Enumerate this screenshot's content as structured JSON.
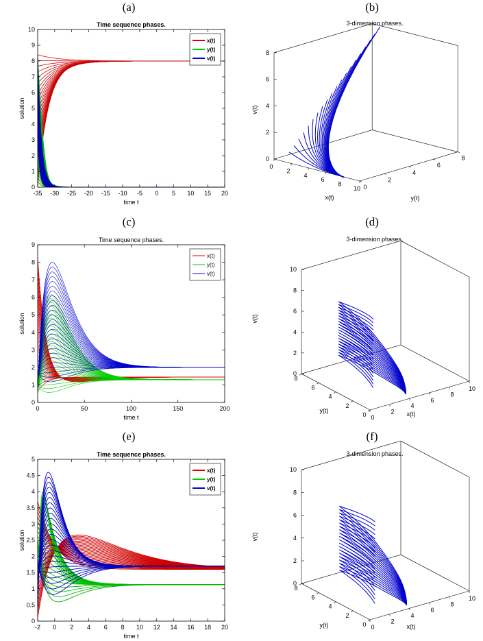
{
  "figure": {
    "labels": [
      "(a)",
      "(b)",
      "(c)",
      "(d)",
      "(e)",
      "(f)"
    ]
  },
  "chart_data": [
    {
      "id": "a",
      "type": "line",
      "title": "Time sequence phases.",
      "xlabel": "time t",
      "ylabel": "solution",
      "xlim": [
        -35,
        20
      ],
      "ylim": [
        0,
        10
      ],
      "xticks": [
        "-35",
        "-30",
        "-25",
        "-20",
        "-15",
        "-10",
        "-5",
        "0",
        "5",
        "10",
        "15",
        "20"
      ],
      "yticks": [
        "0",
        "1",
        "2",
        "3",
        "4",
        "5",
        "6",
        "7",
        "8",
        "9",
        "10"
      ],
      "legend": {
        "position": "top-right",
        "bold": true,
        "entries": [
          "x(t)",
          "y(t)",
          "v(t)"
        ]
      },
      "series": [
        {
          "name": "x(t)",
          "color": "#e00000",
          "description": "rises from ~0-8.4 near t=-35 and converges to 8"
        },
        {
          "name": "y(t)",
          "color": "#00cc00",
          "description": "drops from ~8 at t=-35 to ~0 by t=-25"
        },
        {
          "name": "v(t)",
          "color": "#0000cc",
          "description": "spike near t=-35 then decays to 0"
        }
      ],
      "equilibrium": {
        "x(t)": 8,
        "y(t)": 0,
        "v(t)": 0
      }
    },
    {
      "id": "b",
      "type": "3d-line",
      "title": "3-dimension phases.",
      "axes": {
        "x": {
          "label": "x(t)",
          "ticks": [
            "0",
            "2",
            "4",
            "6",
            "8",
            "10"
          ]
        },
        "y": {
          "label": "y(t)",
          "ticks": [
            "0",
            "2",
            "4",
            "6",
            "8"
          ]
        },
        "z": {
          "label": "v(t)",
          "ticks": [
            "0",
            "2",
            "4",
            "6",
            "8"
          ]
        }
      },
      "color": "#0000cc"
    },
    {
      "id": "c",
      "type": "line",
      "title": "Time sequence phases.",
      "xlabel": "time t",
      "ylabel": "solution",
      "xlim": [
        0,
        200
      ],
      "ylim": [
        0,
        9
      ],
      "xticks": [
        "0",
        "50",
        "100",
        "150",
        "200"
      ],
      "yticks": [
        "0",
        "1",
        "2",
        "3",
        "4",
        "5",
        "6",
        "7",
        "8",
        "9"
      ],
      "legend": {
        "position": "top-right",
        "bold": false,
        "entries": [
          "x(t)",
          "y(t)",
          "v(t)"
        ]
      },
      "series": [
        {
          "name": "x(t)",
          "color": "#e00000",
          "description": "decays from up to ~8.3 with undershoot to ~1, settling at ~1.45"
        },
        {
          "name": "y(t)",
          "color": "#00cc00",
          "description": "peaks up to ~6.2 near t=15 then settles at ~1.3"
        },
        {
          "name": "v(t)",
          "color": "#0000cc",
          "description": "peaks up to ~8.1 near t=15 then settles at ~2"
        }
      ],
      "equilibrium": {
        "x(t)": 1.45,
        "y(t)": 1.3,
        "v(t)": 2.0
      }
    },
    {
      "id": "d",
      "type": "3d-line",
      "title": "3-dimension phases.",
      "axes": {
        "x": {
          "label": "x(t)",
          "ticks": [
            "0",
            "2",
            "4",
            "6",
            "8",
            "10"
          ]
        },
        "y": {
          "label": "y(t)",
          "ticks": [
            "0",
            "2",
            "4",
            "6",
            "8"
          ]
        },
        "z": {
          "label": "v(t)",
          "ticks": [
            "0",
            "2",
            "4",
            "6",
            "8",
            "10"
          ]
        }
      },
      "color": "#0000cc"
    },
    {
      "id": "e",
      "type": "line",
      "title": "Time sequence phases.",
      "xlabel": "time t",
      "ylabel": "solution",
      "xlim": [
        -2,
        20
      ],
      "ylim": [
        0,
        5
      ],
      "xticks": [
        "-2",
        "0",
        "2",
        "4",
        "6",
        "8",
        "10",
        "12",
        "14",
        "16",
        "18",
        "20"
      ],
      "yticks": [
        "0",
        "0.5",
        "1",
        "1.5",
        "2",
        "2.5",
        "3",
        "3.5",
        "4",
        "4.5",
        "5"
      ],
      "legend": {
        "position": "top-right",
        "bold": true,
        "entries": [
          "x(t)",
          "y(t)",
          "v(t)"
        ]
      },
      "series": [
        {
          "name": "x(t)",
          "color": "#e00000",
          "description": "transients settling at ~1.6"
        },
        {
          "name": "y(t)",
          "color": "#00cc00",
          "description": "peaks up to ~4.3 then settles at ~1.13"
        },
        {
          "name": "v(t)",
          "color": "#0000cc",
          "description": "peaks up to ~4.9 near t=-0.8 then settles at ~1.7"
        }
      ],
      "equilibrium": {
        "x(t)": 1.6,
        "y(t)": 1.13,
        "v(t)": 1.7
      }
    },
    {
      "id": "f",
      "type": "3d-line",
      "title": "3-dimension phases.",
      "axes": {
        "x": {
          "label": "x(t)",
          "ticks": [
            "0",
            "2",
            "4",
            "6",
            "8",
            "10"
          ]
        },
        "y": {
          "label": "y(t)",
          "ticks": [
            "0",
            "2",
            "4",
            "6",
            "8"
          ]
        },
        "z": {
          "label": "v(t)",
          "ticks": [
            "0",
            "2",
            "4",
            "6",
            "8",
            "10"
          ]
        }
      },
      "color": "#0000cc"
    }
  ]
}
